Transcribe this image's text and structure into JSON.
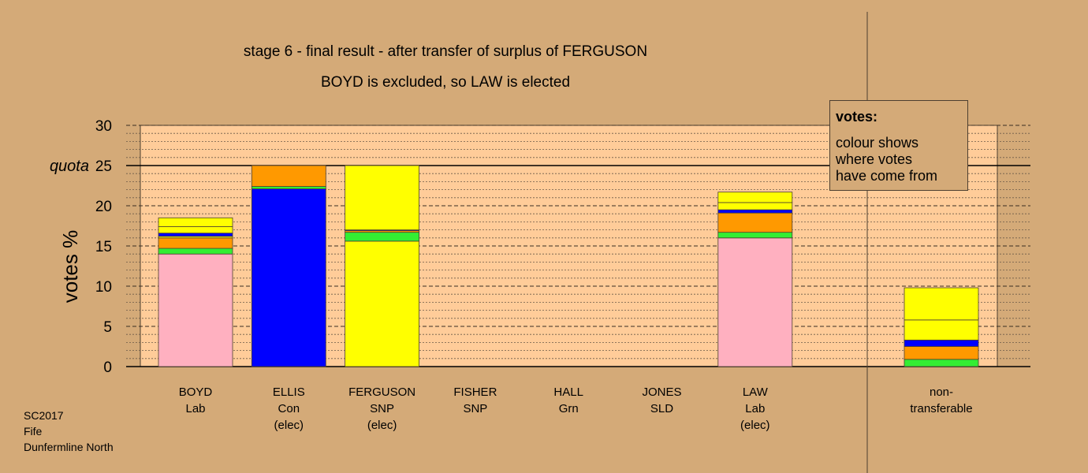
{
  "title": "stage 6 - final result - after transfer of surplus of FERGUSON",
  "subtitle": "BOYD is excluded, so LAW is elected",
  "legend": {
    "heading": "votes:",
    "body": "colour shows\nwhere votes\nhave come from"
  },
  "footer": {
    "line1": "SC2017",
    "line2": "Fife",
    "line3": "Dunfermline North"
  },
  "chart_data": {
    "type": "bar",
    "stacked": true,
    "ylabel": "votes %",
    "ylim": [
      0,
      30
    ],
    "yticks": [
      0,
      5,
      10,
      15,
      20,
      25,
      30
    ],
    "quota": 25,
    "quota_label": "quota",
    "grid": true,
    "candidates": [
      {
        "line1": "BOYD",
        "line2": "Lab",
        "line3": "",
        "segments": [
          {
            "color": "#ffb0c0",
            "value": 14.0
          },
          {
            "color": "#33ee33",
            "value": 0.7
          },
          {
            "color": "#ff9900",
            "value": 1.3
          },
          {
            "color": "#ffff00",
            "value": 0.2
          },
          {
            "color": "#0000ff",
            "value": 0.4
          },
          {
            "color": "#ffff00",
            "value": 0.8
          },
          {
            "color": "#ffff00",
            "value": 1.1
          }
        ]
      },
      {
        "line1": "ELLIS",
        "line2": "Con",
        "line3": "(elec)",
        "segments": [
          {
            "color": "#0000ff",
            "value": 22.1
          },
          {
            "color": "#33ee33",
            "value": 0.3
          },
          {
            "color": "#ff9900",
            "value": 2.6
          }
        ]
      },
      {
        "line1": "FERGUSON",
        "line2": "SNP",
        "line3": "(elec)",
        "segments": [
          {
            "color": "#ffff00",
            "value": 15.6
          },
          {
            "color": "#33ee33",
            "value": 1.1
          },
          {
            "color": "#ff9900",
            "value": 0.2
          },
          {
            "color": "#0000ff",
            "value": 0.1
          },
          {
            "color": "#ffff00",
            "value": 8.0
          }
        ]
      },
      {
        "line1": "FISHER",
        "line2": "SNP",
        "line3": "",
        "segments": []
      },
      {
        "line1": "HALL",
        "line2": "Grn",
        "line3": "",
        "segments": []
      },
      {
        "line1": "JONES",
        "line2": "SLD",
        "line3": "",
        "segments": []
      },
      {
        "line1": "LAW",
        "line2": "Lab",
        "line3": "(elec)",
        "segments": [
          {
            "color": "#ffb0c0",
            "value": 16.0
          },
          {
            "color": "#33ee33",
            "value": 0.7
          },
          {
            "color": "#ff9900",
            "value": 2.4
          },
          {
            "color": "#0000ff",
            "value": 0.4
          },
          {
            "color": "#ffff00",
            "value": 0.9
          },
          {
            "color": "#ffff00",
            "value": 1.3
          }
        ]
      }
    ],
    "nontransferable": {
      "line1": "non-",
      "line2": "transferable",
      "line3": "",
      "segments": [
        {
          "color": "#33ee33",
          "value": 0.9
        },
        {
          "color": "#ff9900",
          "value": 1.6
        },
        {
          "color": "#0000ff",
          "value": 0.8
        },
        {
          "color": "#ffff00",
          "value": 2.5
        },
        {
          "color": "#ffff00",
          "value": 4.0
        }
      ]
    }
  }
}
